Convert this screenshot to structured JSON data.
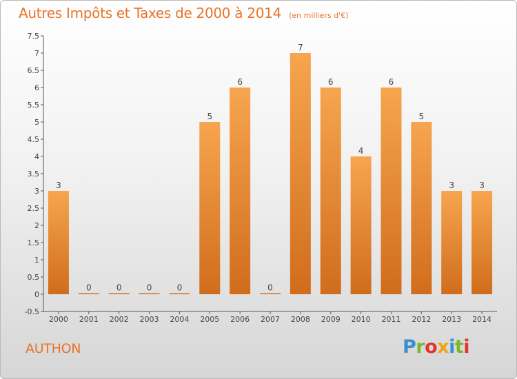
{
  "header": {
    "title": "Autres Impôts et Taxes de 2000 à 2014",
    "subtitle": "(en milliers d'€)"
  },
  "location": "AUTHON",
  "brand": {
    "letters": [
      "P",
      "r",
      "o",
      "x",
      "i",
      "t",
      "i"
    ]
  },
  "colors": {
    "accent": "#e8742a",
    "bar_top": "#f7a54f",
    "bar_bottom": "#d06d1c",
    "logo_letters": [
      "#3a8fd0",
      "#7ab829",
      "#e3342d",
      "#f0a419",
      "#3a8fd0",
      "#7ab829",
      "#e3342d"
    ]
  },
  "chart_data": {
    "type": "bar",
    "title": "Autres Impôts et Taxes de 2000 à 2014",
    "subtitle": "(en milliers d'€)",
    "categories": [
      "2000",
      "2001",
      "2002",
      "2003",
      "2004",
      "2005",
      "2006",
      "2007",
      "2008",
      "2009",
      "2010",
      "2011",
      "2012",
      "2013",
      "2014"
    ],
    "values": [
      3,
      0,
      0,
      0,
      0,
      5,
      6,
      0,
      7,
      6,
      4,
      6,
      5,
      3,
      3
    ],
    "ylim": [
      -0.5,
      7.5
    ],
    "yticks": [
      "-0.5",
      "0",
      "0.5",
      "1",
      "1.5",
      "2",
      "2.5",
      "3",
      "3.5",
      "4",
      "4.5",
      "5",
      "5.5",
      "6",
      "6.5",
      "7",
      "7.5"
    ],
    "grid": false,
    "data_labels": true
  }
}
